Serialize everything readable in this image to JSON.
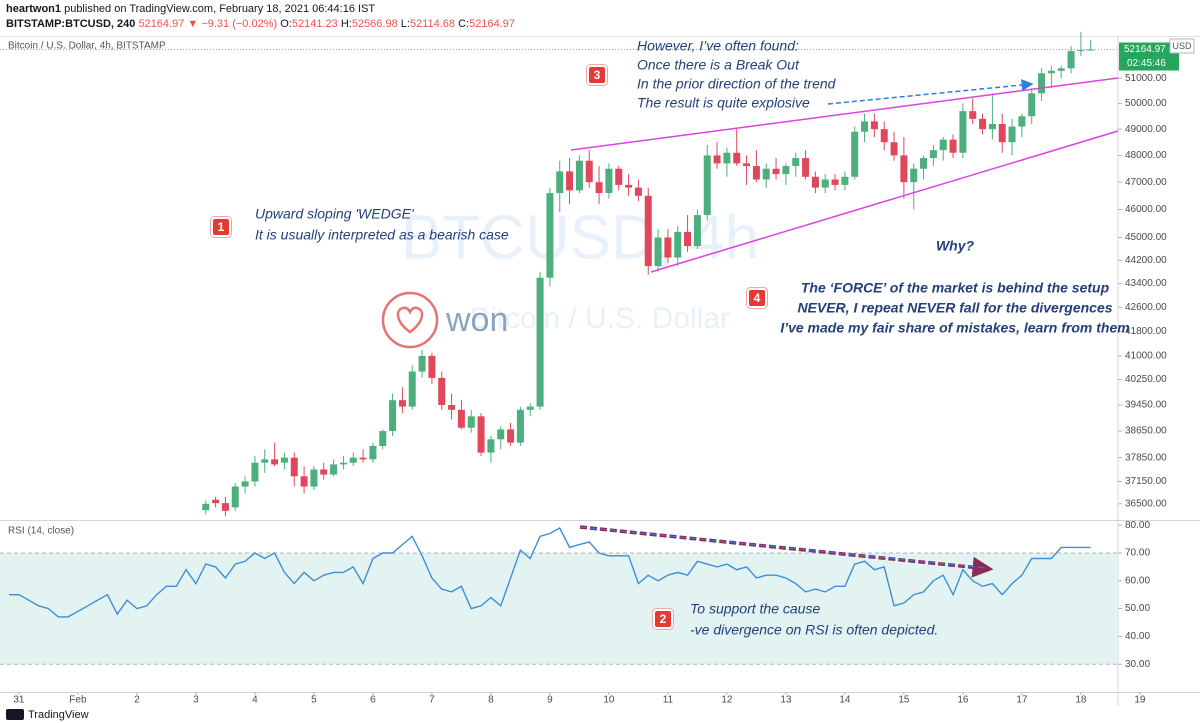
{
  "header": {
    "user": "heartwon1",
    "published": "published on TradingView.com, February 18, 2021 06:44:16 IST",
    "symbol": "BITSTAMP:BTCUSD, 240",
    "change": "▼ −9.31 (−0.02%)",
    "o": "O:",
    "h": "H:",
    "l": "L:",
    "c": "C:",
    "footer": "TradingView"
  },
  "chart_data": [
    {
      "type": "candlestick",
      "title": "Bitcoin / U.S. Dollar, 4h, BITSTAMP",
      "watermark": "BTCUSD, 4h",
      "watermark_sub": "Bitcoin / U.S. Dollar",
      "logo": "won",
      "currency": "USD",
      "countdown": "02:45:46",
      "log": true,
      "up_color": "#4caf7d",
      "down_color": "#e0475a",
      "xlim": [
        -7.7,
        447.1
      ],
      "xticks": [
        {
          "value": 0,
          "label": "31"
        },
        {
          "value": 24,
          "label": "Feb"
        },
        {
          "value": 48,
          "label": "2"
        },
        {
          "value": 72,
          "label": "3"
        },
        {
          "value": 96,
          "label": "4"
        },
        {
          "value": 120,
          "label": "5"
        },
        {
          "value": 144,
          "label": "6"
        },
        {
          "value": 168,
          "label": "7"
        },
        {
          "value": 192,
          "label": "8"
        },
        {
          "value": 216,
          "label": "9"
        },
        {
          "value": 240,
          "label": "10"
        },
        {
          "value": 264,
          "label": "11"
        },
        {
          "value": 288,
          "label": "12"
        },
        {
          "value": 312,
          "label": "13"
        },
        {
          "value": 336,
          "label": "14"
        },
        {
          "value": 360,
          "label": "15"
        },
        {
          "value": 384,
          "label": "16"
        },
        {
          "value": 408,
          "label": "17"
        },
        {
          "value": 432,
          "label": "18"
        },
        {
          "value": 456,
          "label": "19"
        }
      ],
      "ylim": [
        36040,
        52640
      ],
      "yticks": [
        {
          "value": 36500,
          "label": "36500.00"
        },
        {
          "value": 37150,
          "label": "37150.00"
        },
        {
          "value": 37850,
          "label": "37850.00"
        },
        {
          "value": 38650,
          "label": "38650.00"
        },
        {
          "value": 39450,
          "label": "39450.00"
        },
        {
          "value": 40250,
          "label": "40250.00"
        },
        {
          "value": 41000,
          "label": "41000.00"
        },
        {
          "value": 41800,
          "label": "41800.00"
        },
        {
          "value": 42600,
          "label": "42600.00"
        },
        {
          "value": 43400,
          "label": "43400.00"
        },
        {
          "value": 44200,
          "label": "44200.00"
        },
        {
          "value": 45000,
          "label": "45000.00"
        },
        {
          "value": 46000,
          "label": "46000.00"
        },
        {
          "value": 47000,
          "label": "47000.00"
        },
        {
          "value": 48000,
          "label": "48000.00"
        },
        {
          "value": 49000,
          "label": "49000.00"
        },
        {
          "value": 50000,
          "label": "50000.00"
        },
        {
          "value": 51000,
          "label": "51000.00"
        }
      ],
      "x": [
        76,
        80,
        84,
        88,
        92,
        96,
        100,
        104,
        108,
        112,
        116,
        120,
        124,
        128,
        132,
        136,
        140,
        144,
        148,
        152,
        156,
        160,
        164,
        168,
        172,
        176,
        180,
        184,
        188,
        192,
        196,
        200,
        204,
        208,
        212,
        216,
        220,
        224,
        228,
        232,
        236,
        240,
        244,
        248,
        252,
        256,
        260,
        264,
        268,
        272,
        276,
        280,
        284,
        288,
        292,
        296,
        300,
        304,
        308,
        312,
        316,
        320,
        324,
        328,
        332,
        336,
        340,
        344,
        348,
        352,
        356,
        360,
        364,
        368,
        372,
        376,
        380,
        384,
        388,
        392,
        396,
        400,
        404,
        408,
        412,
        416,
        420,
        424,
        428,
        432,
        436
      ],
      "open": [
        36320,
        36620,
        36520,
        36400,
        37000,
        37150,
        37700,
        37800,
        37700,
        37850,
        37300,
        37000,
        37500,
        37350,
        37650,
        37700,
        37850,
        37800,
        38200,
        38650,
        39600,
        39400,
        40500,
        41000,
        40300,
        39450,
        39300,
        38750,
        39100,
        38000,
        38400,
        38700,
        38300,
        39300,
        39400,
        43600,
        46600,
        47400,
        46700,
        47800,
        47000,
        46600,
        47500,
        46900,
        46800,
        46500,
        44000,
        45000,
        44300,
        45200,
        44700,
        45800,
        48000,
        47700,
        48100,
        47700,
        47600,
        47100,
        47500,
        47300,
        47600,
        47900,
        47200,
        46800,
        47100,
        46900,
        47200,
        48900,
        49300,
        49000,
        48500,
        48000,
        47000,
        47500,
        47900,
        48200,
        48600,
        48100,
        49700,
        49400,
        49000,
        49200,
        48500,
        49100,
        49500,
        50400,
        51200,
        51300,
        51400,
        52100,
        52141.23
      ],
      "high": [
        36600,
        36700,
        36700,
        37100,
        37300,
        37900,
        38100,
        38300,
        38000,
        38000,
        37600,
        37600,
        37700,
        37800,
        37900,
        38000,
        38100,
        38300,
        38700,
        39800,
        40000,
        40700,
        41200,
        41100,
        40500,
        39800,
        39600,
        39300,
        39200,
        38500,
        38800,
        38900,
        39400,
        39500,
        43800,
        46800,
        47800,
        47900,
        48000,
        48200,
        47600,
        47700,
        47600,
        47300,
        47100,
        46800,
        45300,
        45300,
        45400,
        45800,
        46000,
        48400,
        48500,
        48300,
        49000,
        48000,
        48200,
        47700,
        47900,
        47700,
        48100,
        48200,
        47400,
        47300,
        47300,
        47400,
        49100,
        49600,
        49600,
        49300,
        48900,
        48700,
        47700,
        48000,
        48400,
        48700,
        48800,
        50000,
        50200,
        49600,
        50400,
        49600,
        49400,
        49600,
        50600,
        51400,
        51500,
        51500,
        52300,
        52900,
        52566.98
      ],
      "low": [
        36200,
        36400,
        36150,
        36300,
        36800,
        37000,
        37400,
        37600,
        37500,
        37000,
        36800,
        36900,
        37200,
        37300,
        37500,
        37600,
        37700,
        37700,
        38100,
        38500,
        39200,
        39300,
        40300,
        40100,
        39300,
        39000,
        38700,
        38600,
        37900,
        37700,
        38100,
        38200,
        38200,
        39100,
        39300,
        43300,
        45900,
        46200,
        46600,
        46800,
        46200,
        46400,
        46700,
        46500,
        46300,
        43700,
        43800,
        44100,
        44000,
        44500,
        44600,
        45600,
        47500,
        47200,
        47600,
        46900,
        47000,
        46800,
        47100,
        46900,
        47200,
        47100,
        46600,
        46600,
        46700,
        46700,
        47100,
        48500,
        48700,
        48200,
        47800,
        46400,
        46000,
        47100,
        47600,
        47800,
        47900,
        47900,
        49200,
        48800,
        48600,
        48100,
        48000,
        48700,
        49200,
        50100,
        50600,
        51000,
        51200,
        51900,
        52114.68
      ],
      "close": [
        36500,
        36520,
        36300,
        37000,
        37150,
        37700,
        37800,
        37650,
        37850,
        37300,
        37000,
        37500,
        37350,
        37650,
        37700,
        37850,
        37800,
        38200,
        38650,
        39600,
        39400,
        40500,
        41000,
        40300,
        39450,
        39300,
        38750,
        39100,
        38000,
        38400,
        38700,
        38300,
        39300,
        39400,
        43600,
        46600,
        47400,
        46700,
        47800,
        47000,
        46600,
        47500,
        46900,
        46800,
        46500,
        44000,
        45000,
        44300,
        45200,
        44700,
        45800,
        48000,
        47700,
        48100,
        47700,
        47600,
        47100,
        47500,
        47300,
        47600,
        47900,
        47200,
        46800,
        47100,
        46900,
        47200,
        48900,
        49300,
        49000,
        48500,
        48000,
        47000,
        47500,
        47900,
        48200,
        48600,
        48100,
        49700,
        49400,
        49000,
        49200,
        48500,
        49100,
        49500,
        50400,
        51200,
        51300,
        51400,
        52100,
        52141.23,
        52164.97
      ],
      "annotations": [
        {
          "number": "1",
          "lines": [
            "Upward sloping 'WEDGE'",
            "It is usually interpreted as a bearish case"
          ]
        },
        {
          "number": "2",
          "lines": [
            "To support the cause",
            "-ve divergence on RSI is often depicted."
          ]
        },
        {
          "number": "3",
          "lines": [
            "However, I’ve often found:",
            "Once there is a Break Out",
            "In the prior direction of the trend",
            "The result is quite explosive"
          ]
        },
        {
          "number": "4",
          "lines": [
            "Why?",
            "The ‘FORCE’ of the market is behind the setup",
            "NEVER, I repeat NEVER fall for the divergences",
            "I’ve made my fair share of mistakes, learn from them"
          ]
        }
      ]
    },
    {
      "type": "line",
      "title": "RSI (14, close)",
      "color": "#3d8fd8",
      "band": [
        30,
        70
      ],
      "band_color": "#e3f3f2",
      "xlim": [
        -7.7,
        447.1
      ],
      "ylim": [
        20,
        81.5
      ],
      "yticks": [
        {
          "value": 30,
          "label": "30.00"
        },
        {
          "value": 40,
          "label": "40.00"
        },
        {
          "value": 50,
          "label": "50.00"
        },
        {
          "value": 60,
          "label": "60.00"
        },
        {
          "value": 70,
          "label": "70.00"
        },
        {
          "value": 80,
          "label": "80.00"
        }
      ],
      "x": [
        -4,
        0,
        4,
        8,
        12,
        16,
        20,
        24,
        28,
        32,
        36,
        40,
        44,
        48,
        52,
        56,
        60,
        64,
        68,
        72,
        76,
        80,
        84,
        88,
        92,
        96,
        100,
        104,
        108,
        112,
        116,
        120,
        124,
        128,
        132,
        136,
        140,
        144,
        148,
        152,
        156,
        160,
        164,
        168,
        172,
        176,
        180,
        184,
        188,
        192,
        196,
        200,
        204,
        208,
        212,
        216,
        220,
        224,
        228,
        232,
        236,
        240,
        244,
        248,
        252,
        256,
        260,
        264,
        268,
        272,
        276,
        280,
        284,
        288,
        292,
        296,
        300,
        304,
        308,
        312,
        316,
        320,
        324,
        328,
        332,
        336,
        340,
        344,
        348,
        352,
        356,
        360,
        364,
        368,
        372,
        376,
        380,
        384,
        388,
        392,
        396,
        400,
        404,
        408,
        412,
        416,
        420,
        424,
        428,
        432,
        436
      ],
      "values": [
        55,
        55,
        53,
        51,
        50,
        47,
        47,
        49,
        51,
        53,
        55,
        48,
        53,
        50,
        51,
        55,
        58,
        58,
        64,
        59,
        66,
        65,
        61,
        66,
        67,
        70,
        68,
        70,
        63,
        59,
        63,
        60,
        62,
        63,
        63,
        65,
        59,
        68,
        70,
        70,
        73,
        76,
        69,
        61,
        57,
        56,
        58,
        50,
        51,
        54,
        51,
        61,
        71,
        68,
        76,
        77,
        79,
        72,
        73,
        74,
        70,
        69,
        69,
        69,
        59,
        62,
        60,
        62,
        63,
        62,
        67,
        66,
        65,
        66,
        64,
        65,
        61,
        62,
        62,
        61,
        59,
        56,
        57,
        56,
        58,
        58,
        66,
        67,
        64,
        65,
        51,
        52,
        55,
        56,
        60,
        62,
        55,
        64,
        60,
        58,
        59,
        55,
        59,
        62,
        68,
        68,
        68,
        72,
        72,
        72,
        72
      ]
    }
  ]
}
